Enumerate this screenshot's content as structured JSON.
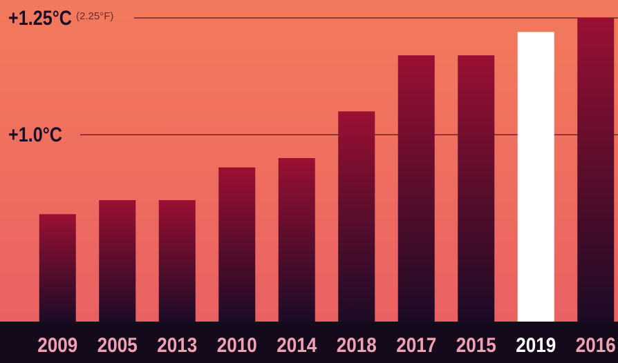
{
  "chart_data": {
    "type": "bar",
    "categories": [
      "2009",
      "2005",
      "2013",
      "2010",
      "2014",
      "2018",
      "2017",
      "2015",
      "2019",
      "2016"
    ],
    "values": [
      0.83,
      0.86,
      0.86,
      0.93,
      0.95,
      1.05,
      1.17,
      1.17,
      1.22,
      1.25
    ],
    "ylim": [
      0.6,
      1.26
    ],
    "yticks": [
      {
        "value": 1.25,
        "label": "+1.25°C",
        "sublabel": "(2.25°F)"
      },
      {
        "value": 1.0,
        "label": "+1.0°C",
        "sublabel": ""
      }
    ],
    "highlight": "2019",
    "legend": "none",
    "grid": "horizontal at ticks"
  },
  "colors": {
    "bar_top": "#9a1033",
    "bar_bottom": "#1c0b26",
    "highlight_bar": "#ffffff",
    "label_normal": "#f2a0b4",
    "label_highlight": "#ffffff",
    "tick_text": "#1c0b26",
    "sublabel_text": "#6b2a36",
    "grid_line": "#4a1a26",
    "axis_band": "#150a1c"
  }
}
